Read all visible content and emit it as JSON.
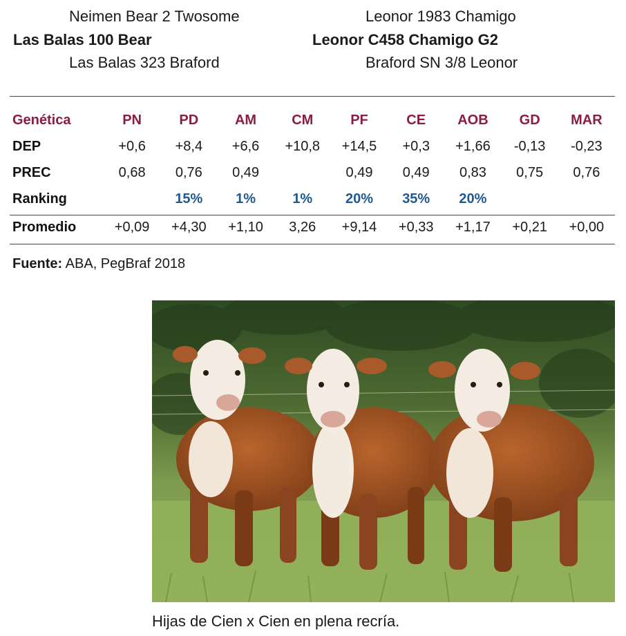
{
  "pedigree": {
    "sire": {
      "sire_of_sire": "Neimen Bear 2 Twosome",
      "name": "Las Balas 100 Bear",
      "dam_of_sire": "Las Balas 323 Braford"
    },
    "dam": {
      "sire_of_dam": "Leonor 1983 Chamigo",
      "name": "Leonor C458 Chamigo G2",
      "dam_of_dam": "Braford SN 3/8 Leonor"
    }
  },
  "table": {
    "header_label": "Genética",
    "columns": [
      "PN",
      "PD",
      "AM",
      "CM",
      "PF",
      "CE",
      "AOB",
      "GD",
      "MAR"
    ],
    "rows": [
      {
        "label": "DEP",
        "values": [
          "+0,6",
          "+8,4",
          "+6,6",
          "+10,8",
          "+14,5",
          "+0,3",
          "+1,66",
          "-0,13",
          "-0,23"
        ]
      },
      {
        "label": "PREC",
        "values": [
          "0,68",
          "0,76",
          "0,49",
          "",
          "0,49",
          "0,49",
          "0,83",
          "0,75",
          "0,76"
        ]
      },
      {
        "label": "Ranking",
        "values": [
          "",
          "15%",
          "1%",
          "1%",
          "20%",
          "35%",
          "20%",
          "",
          ""
        ]
      }
    ],
    "average": {
      "label": "Promedio",
      "values": [
        "+0,09",
        "+4,30",
        "+1,10",
        "3,26",
        "+9,14",
        "+0,33",
        "+1,17",
        "+0,21",
        "+0,00"
      ]
    }
  },
  "source": {
    "label": "Fuente:",
    "text": "ABA, PegBraf 2018"
  },
  "photo": {
    "caption": "Hijas de Cien x Cien en plena recría."
  },
  "colors": {
    "accent": "#8c1d40",
    "ranking": "#1e5a92",
    "text": "#1a1a1a"
  }
}
